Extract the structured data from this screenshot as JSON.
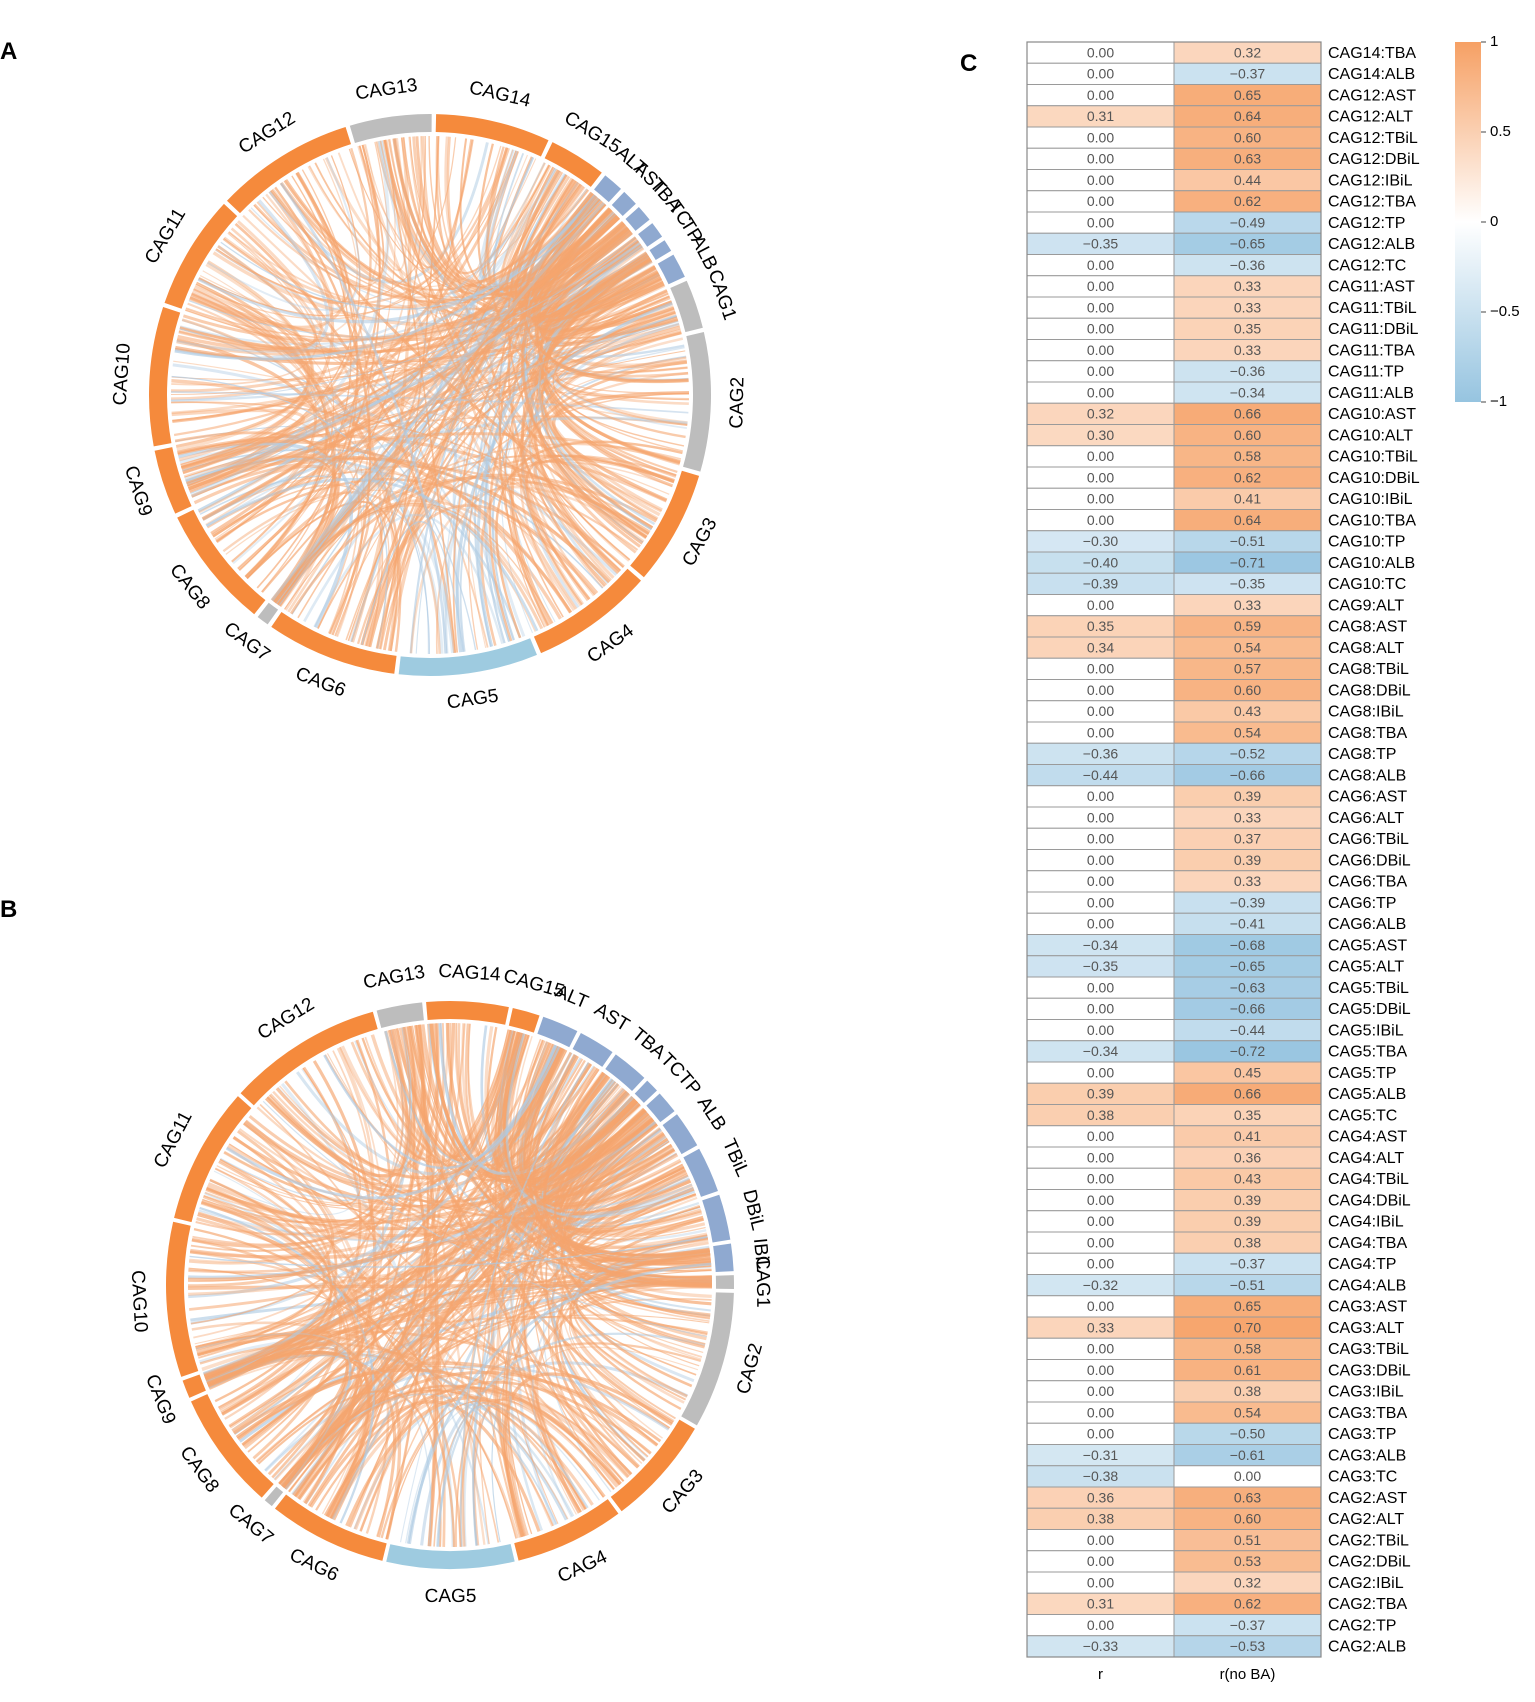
{
  "panels": {
    "a": "A",
    "b": "B",
    "c": "C"
  },
  "colors": {
    "orange": "#F58A3C",
    "blue": "#8FA9D0",
    "lightblue": "#9ECBE0",
    "gray": "#BDBDBD",
    "chordPos": "#F5A56E",
    "chordNeg": "#AFCBE3"
  },
  "chart_data": [
    {
      "type": "chord",
      "panel": "A",
      "sectors": [
        {
          "label": "CAG1",
          "kind": "gray"
        },
        {
          "label": "CAG2",
          "kind": "gray"
        },
        {
          "label": "CAG3",
          "kind": "orange"
        },
        {
          "label": "CAG4",
          "kind": "orange"
        },
        {
          "label": "CAG5",
          "kind": "lightblue"
        },
        {
          "label": "CAG6",
          "kind": "orange"
        },
        {
          "label": "CAG7",
          "kind": "gray"
        },
        {
          "label": "CAG8",
          "kind": "orange"
        },
        {
          "label": "CAG9",
          "kind": "orange"
        },
        {
          "label": "CAG10",
          "kind": "orange"
        },
        {
          "label": "CAG11",
          "kind": "orange"
        },
        {
          "label": "CAG12",
          "kind": "orange"
        },
        {
          "label": "CAG13",
          "kind": "gray"
        },
        {
          "label": "CAG14",
          "kind": "orange"
        },
        {
          "label": "CAG15",
          "kind": "orange"
        },
        {
          "label": "ALT",
          "kind": "blue"
        },
        {
          "label": "AST",
          "kind": "blue"
        },
        {
          "label": "TBA",
          "kind": "blue"
        },
        {
          "label": "TC",
          "kind": "blue"
        },
        {
          "label": "TP",
          "kind": "blue"
        },
        {
          "label": "ALB",
          "kind": "blue"
        }
      ]
    },
    {
      "type": "chord",
      "panel": "B",
      "sectors": [
        {
          "label": "CAG1",
          "kind": "gray"
        },
        {
          "label": "CAG2",
          "kind": "gray"
        },
        {
          "label": "CAG3",
          "kind": "orange"
        },
        {
          "label": "CAG4",
          "kind": "orange"
        },
        {
          "label": "CAG5",
          "kind": "lightblue"
        },
        {
          "label": "CAG6",
          "kind": "orange"
        },
        {
          "label": "CAG7",
          "kind": "gray"
        },
        {
          "label": "CAG8",
          "kind": "orange"
        },
        {
          "label": "CAG9",
          "kind": "orange"
        },
        {
          "label": "CAG10",
          "kind": "orange"
        },
        {
          "label": "CAG11",
          "kind": "orange"
        },
        {
          "label": "CAG12",
          "kind": "orange"
        },
        {
          "label": "CAG13",
          "kind": "gray"
        },
        {
          "label": "CAG14",
          "kind": "orange"
        },
        {
          "label": "CAG15",
          "kind": "orange"
        },
        {
          "label": "ALT",
          "kind": "blue"
        },
        {
          "label": "AST",
          "kind": "blue"
        },
        {
          "label": "TBA",
          "kind": "blue"
        },
        {
          "label": "TC",
          "kind": "blue"
        },
        {
          "label": "TP",
          "kind": "blue"
        },
        {
          "label": "ALB",
          "kind": "blue"
        },
        {
          "label": "TBiL",
          "kind": "blue"
        },
        {
          "label": "DBiL",
          "kind": "blue"
        },
        {
          "label": "IBiL",
          "kind": "blue"
        }
      ]
    },
    {
      "type": "heatmap",
      "panel": "C",
      "columns": [
        "r",
        "r(no BA)"
      ],
      "legend": {
        "ticks": [
          "1",
          "0.5",
          "0",
          "−0.5",
          "−1"
        ]
      },
      "rows": [
        {
          "label": "CAG14:TBA",
          "r": "0.00",
          "nba": "0.32"
        },
        {
          "label": "CAG14:ALB",
          "r": "0.00",
          "nba": "−0.37"
        },
        {
          "label": "CAG12:AST",
          "r": "0.00",
          "nba": "0.65"
        },
        {
          "label": "CAG12:ALT",
          "r": "0.31",
          "nba": "0.64"
        },
        {
          "label": "CAG12:TBiL",
          "r": "0.00",
          "nba": "0.60"
        },
        {
          "label": "CAG12:DBiL",
          "r": "0.00",
          "nba": "0.63"
        },
        {
          "label": "CAG12:IBiL",
          "r": "0.00",
          "nba": "0.44"
        },
        {
          "label": "CAG12:TBA",
          "r": "0.00",
          "nba": "0.62"
        },
        {
          "label": "CAG12:TP",
          "r": "0.00",
          "nba": "−0.49"
        },
        {
          "label": "CAG12:ALB",
          "r": "−0.35",
          "nba": "−0.65"
        },
        {
          "label": "CAG12:TC",
          "r": "0.00",
          "nba": "−0.36"
        },
        {
          "label": "CAG11:AST",
          "r": "0.00",
          "nba": "0.33"
        },
        {
          "label": "CAG11:TBiL",
          "r": "0.00",
          "nba": "0.33"
        },
        {
          "label": "CAG11:DBiL",
          "r": "0.00",
          "nba": "0.35"
        },
        {
          "label": "CAG11:TBA",
          "r": "0.00",
          "nba": "0.33"
        },
        {
          "label": "CAG11:TP",
          "r": "0.00",
          "nba": "−0.36"
        },
        {
          "label": "CAG11:ALB",
          "r": "0.00",
          "nba": "−0.34"
        },
        {
          "label": "CAG10:AST",
          "r": "0.32",
          "nba": "0.66"
        },
        {
          "label": "CAG10:ALT",
          "r": "0.30",
          "nba": "0.60"
        },
        {
          "label": "CAG10:TBiL",
          "r": "0.00",
          "nba": "0.58"
        },
        {
          "label": "CAG10:DBiL",
          "r": "0.00",
          "nba": "0.62"
        },
        {
          "label": "CAG10:IBiL",
          "r": "0.00",
          "nba": "0.41"
        },
        {
          "label": "CAG10:TBA",
          "r": "0.00",
          "nba": "0.64"
        },
        {
          "label": "CAG10:TP",
          "r": "−0.30",
          "nba": "−0.51"
        },
        {
          "label": "CAG10:ALB",
          "r": "−0.40",
          "nba": "−0.71"
        },
        {
          "label": "CAG10:TC",
          "r": "−0.39",
          "nba": "−0.35"
        },
        {
          "label": "CAG9:ALT",
          "r": "0.00",
          "nba": "0.33"
        },
        {
          "label": "CAG8:AST",
          "r": "0.35",
          "nba": "0.59"
        },
        {
          "label": "CAG8:ALT",
          "r": "0.34",
          "nba": "0.54"
        },
        {
          "label": "CAG8:TBiL",
          "r": "0.00",
          "nba": "0.57"
        },
        {
          "label": "CAG8:DBiL",
          "r": "0.00",
          "nba": "0.60"
        },
        {
          "label": "CAG8:IBiL",
          "r": "0.00",
          "nba": "0.43"
        },
        {
          "label": "CAG8:TBA",
          "r": "0.00",
          "nba": "0.54"
        },
        {
          "label": "CAG8:TP",
          "r": "−0.36",
          "nba": "−0.52"
        },
        {
          "label": "CAG8:ALB",
          "r": "−0.44",
          "nba": "−0.66"
        },
        {
          "label": "CAG6:AST",
          "r": "0.00",
          "nba": "0.39"
        },
        {
          "label": "CAG6:ALT",
          "r": "0.00",
          "nba": "0.33"
        },
        {
          "label": "CAG6:TBiL",
          "r": "0.00",
          "nba": "0.37"
        },
        {
          "label": "CAG6:DBiL",
          "r": "0.00",
          "nba": "0.39"
        },
        {
          "label": "CAG6:TBA",
          "r": "0.00",
          "nba": "0.33"
        },
        {
          "label": "CAG6:TP",
          "r": "0.00",
          "nba": "−0.39"
        },
        {
          "label": "CAG6:ALB",
          "r": "0.00",
          "nba": "−0.41"
        },
        {
          "label": "CAG5:AST",
          "r": "−0.34",
          "nba": "−0.68"
        },
        {
          "label": "CAG5:ALT",
          "r": "−0.35",
          "nba": "−0.65"
        },
        {
          "label": "CAG5:TBiL",
          "r": "0.00",
          "nba": "−0.63"
        },
        {
          "label": "CAG5:DBiL",
          "r": "0.00",
          "nba": "−0.66"
        },
        {
          "label": "CAG5:IBiL",
          "r": "0.00",
          "nba": "−0.44"
        },
        {
          "label": "CAG5:TBA",
          "r": "−0.34",
          "nba": "−0.72"
        },
        {
          "label": "CAG5:TP",
          "r": "0.00",
          "nba": "0.45"
        },
        {
          "label": "CAG5:ALB",
          "r": "0.39",
          "nba": "0.66"
        },
        {
          "label": "CAG5:TC",
          "r": "0.38",
          "nba": "0.35"
        },
        {
          "label": "CAG4:AST",
          "r": "0.00",
          "nba": "0.41"
        },
        {
          "label": "CAG4:ALT",
          "r": "0.00",
          "nba": "0.36"
        },
        {
          "label": "CAG4:TBiL",
          "r": "0.00",
          "nba": "0.43"
        },
        {
          "label": "CAG4:DBiL",
          "r": "0.00",
          "nba": "0.39"
        },
        {
          "label": "CAG4:IBiL",
          "r": "0.00",
          "nba": "0.39"
        },
        {
          "label": "CAG4:TBA",
          "r": "0.00",
          "nba": "0.38"
        },
        {
          "label": "CAG4:TP",
          "r": "0.00",
          "nba": "−0.37"
        },
        {
          "label": "CAG4:ALB",
          "r": "−0.32",
          "nba": "−0.51"
        },
        {
          "label": "CAG3:AST",
          "r": "0.00",
          "nba": "0.65"
        },
        {
          "label": "CAG3:ALT",
          "r": "0.33",
          "nba": "0.70"
        },
        {
          "label": "CAG3:TBiL",
          "r": "0.00",
          "nba": "0.58"
        },
        {
          "label": "CAG3:DBiL",
          "r": "0.00",
          "nba": "0.61"
        },
        {
          "label": "CAG3:IBiL",
          "r": "0.00",
          "nba": "0.38"
        },
        {
          "label": "CAG3:TBA",
          "r": "0.00",
          "nba": "0.54"
        },
        {
          "label": "CAG3:TP",
          "r": "0.00",
          "nba": "−0.50"
        },
        {
          "label": "CAG3:ALB",
          "r": "−0.31",
          "nba": "−0.61"
        },
        {
          "label": "CAG3:TC",
          "r": "−0.38",
          "nba": "0.00"
        },
        {
          "label": "CAG2:AST",
          "r": "0.36",
          "nba": "0.63"
        },
        {
          "label": "CAG2:ALT",
          "r": "0.38",
          "nba": "0.60"
        },
        {
          "label": "CAG2:TBiL",
          "r": "0.00",
          "nba": "0.51"
        },
        {
          "label": "CAG2:DBiL",
          "r": "0.00",
          "nba": "0.53"
        },
        {
          "label": "CAG2:IBiL",
          "r": "0.00",
          "nba": "0.32"
        },
        {
          "label": "CAG2:TBA",
          "r": "0.31",
          "nba": "0.62"
        },
        {
          "label": "CAG2:TP",
          "r": "0.00",
          "nba": "−0.37"
        },
        {
          "label": "CAG2:ALB",
          "r": "−0.33",
          "nba": "−0.53"
        }
      ]
    }
  ]
}
